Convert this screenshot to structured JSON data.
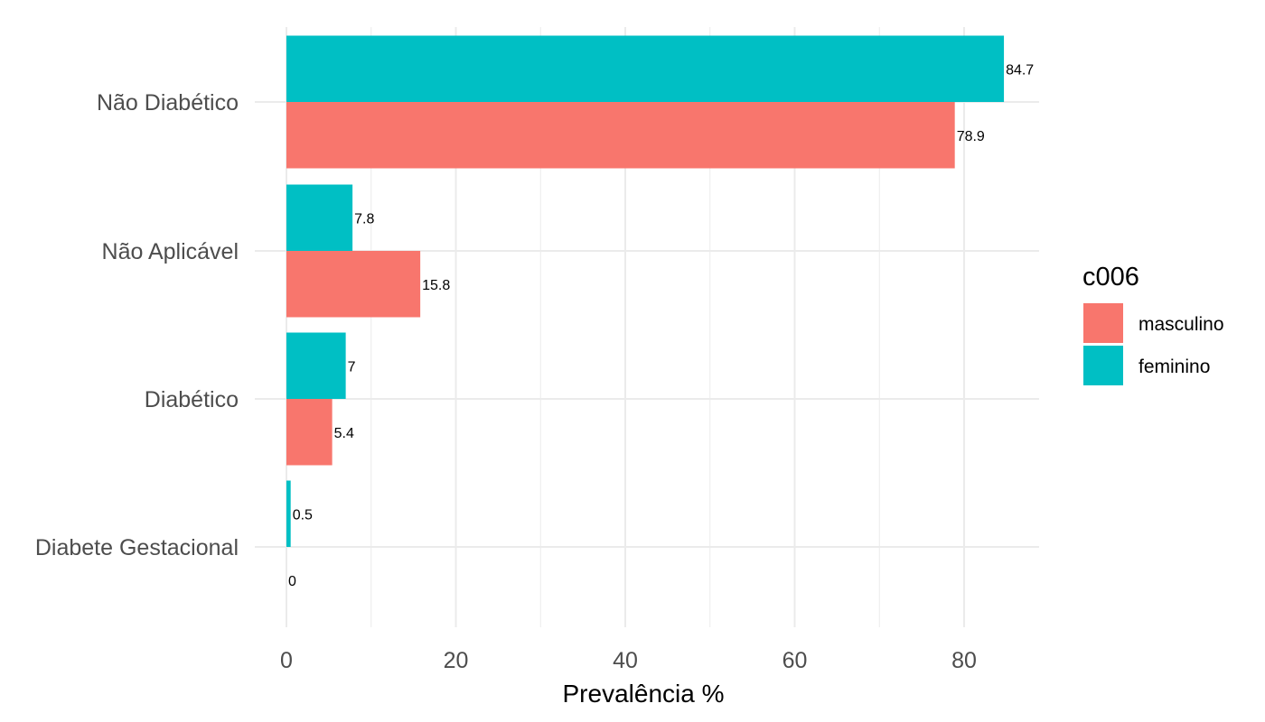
{
  "chart_data": {
    "type": "bar",
    "orientation": "horizontal",
    "categories": [
      "Não Diabético",
      "Não Aplicável",
      "Diabético",
      "Diabete Gestacional"
    ],
    "series": [
      {
        "name": "masculino",
        "color": "#F8766D",
        "values": [
          78.9,
          15.8,
          5.4,
          0
        ],
        "labels": [
          "78.9",
          "15.8",
          "5.4",
          "0"
        ]
      },
      {
        "name": "feminino",
        "color": "#00BFC4",
        "values": [
          84.7,
          7.8,
          7,
          0.5
        ],
        "labels": [
          "84.7",
          "7.8",
          "7",
          "0.5"
        ]
      }
    ],
    "xlabel": "Prevalência %",
    "ylabel": "",
    "xlim": [
      0,
      89
    ],
    "xticks": [
      0,
      20,
      40,
      60,
      80
    ],
    "grid": true,
    "legend": {
      "title": "c006",
      "placement": "right"
    }
  }
}
